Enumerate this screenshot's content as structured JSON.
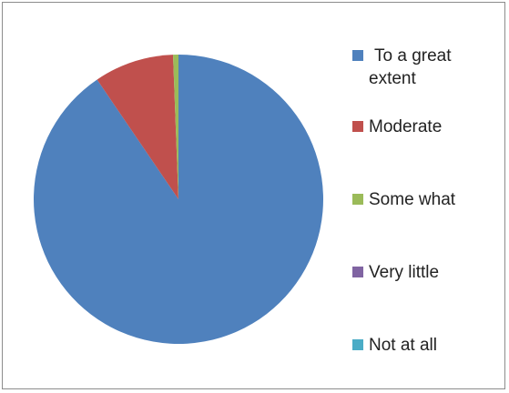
{
  "chart_data": {
    "type": "pie",
    "title": "",
    "series": [
      {
        "label": "To a great extent",
        "legend_lines": [
          "To a great",
          "extent"
        ],
        "value": 90.5,
        "color": "#4F81BD"
      },
      {
        "label": "Moderate",
        "legend_lines": [
          "Moderate"
        ],
        "value": 8.9,
        "color": "#C0504D"
      },
      {
        "label": "Some what",
        "legend_lines": [
          "Some what"
        ],
        "value": 0.6,
        "color": "#9BBB59"
      },
      {
        "label": "Very little",
        "legend_lines": [
          "Very little"
        ],
        "value": 0,
        "color": "#8064A2"
      },
      {
        "label": "Not at all",
        "legend_lines": [
          "Not at all"
        ],
        "value": 0,
        "color": "#4BACC6"
      }
    ],
    "legend_position": "right"
  }
}
